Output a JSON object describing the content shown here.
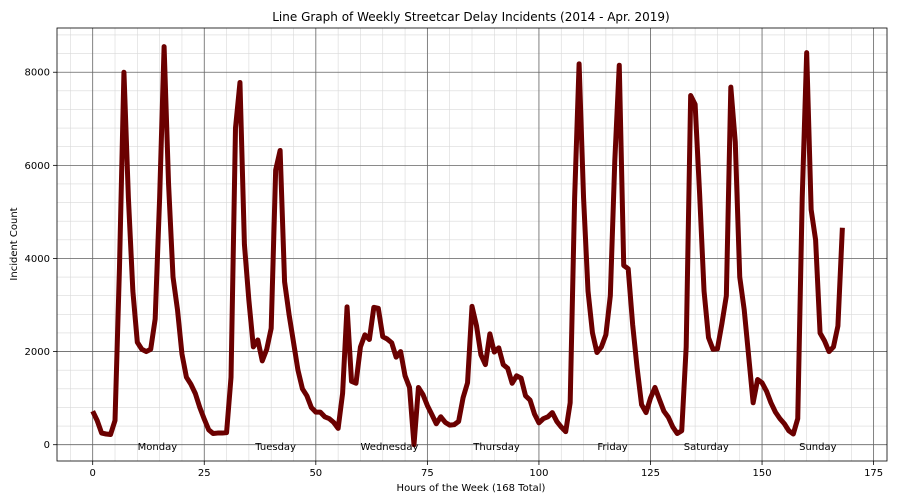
{
  "chart_data": {
    "type": "line",
    "title": "Line Graph of Weekly Streetcar Delay Incidents (2014 - Apr. 2019)",
    "xlabel": "Hours of the Week (168 Total)",
    "ylabel": "Incident Count",
    "xlim": [
      -8,
      178
    ],
    "ylim": [
      -350,
      8950
    ],
    "x_ticks": [
      0,
      25,
      50,
      75,
      100,
      125,
      150,
      175
    ],
    "y_ticks": [
      0,
      2000,
      4000,
      6000,
      8000
    ],
    "x_minor_step": 5,
    "y_minor_step": 400,
    "grid": true,
    "line_color": "#6b0000",
    "day_labels": [
      {
        "label": "Monday",
        "x": 14.5
      },
      {
        "label": "Tuesday",
        "x": 41
      },
      {
        "label": "Wednesday",
        "x": 66.5
      },
      {
        "label": "Thursday",
        "x": 90.5
      },
      {
        "label": "Friday",
        "x": 116.5
      },
      {
        "label": "Saturday",
        "x": 137.5
      },
      {
        "label": "Sunday",
        "x": 162.5
      }
    ],
    "series": [
      {
        "x": [
          0,
          1,
          2,
          3,
          4,
          5,
          6,
          7,
          8,
          9,
          10,
          11,
          12,
          13,
          14,
          15,
          16,
          17,
          18,
          19,
          20,
          21,
          22,
          23,
          24,
          25,
          26,
          27,
          28,
          29,
          30,
          31,
          32,
          33,
          34,
          35,
          36,
          37,
          38,
          39,
          40,
          41,
          42,
          43,
          44,
          45,
          46,
          47,
          48,
          49,
          50,
          51,
          52,
          53,
          54,
          55,
          56,
          57,
          58,
          59,
          60,
          61,
          62,
          63,
          64,
          65,
          66,
          67,
          68,
          69,
          70,
          71,
          72,
          73,
          74,
          75,
          76,
          77,
          78,
          79,
          80,
          81,
          82,
          83,
          84,
          85,
          86,
          87,
          88,
          89,
          90,
          91,
          92,
          93,
          94,
          95,
          96,
          97,
          98,
          99,
          100,
          101,
          102,
          103,
          104,
          105,
          106,
          107,
          108,
          109,
          110,
          111,
          112,
          113,
          114,
          115,
          116,
          117,
          118,
          119,
          120,
          121,
          122,
          123,
          124,
          125,
          126,
          127,
          128,
          129,
          130,
          131,
          132,
          133,
          134,
          135,
          136,
          137,
          138,
          139,
          140,
          141,
          142,
          143,
          144,
          145,
          146,
          147,
          148,
          149,
          150,
          151,
          152,
          153,
          154,
          155,
          156,
          157,
          158,
          159,
          160,
          161,
          162,
          163,
          164,
          165,
          166,
          167,
          168
        ],
        "y": [
          720,
          520,
          250,
          230,
          220,
          520,
          3800,
          8000,
          5300,
          3300,
          2200,
          2050,
          2000,
          2050,
          2700,
          5300,
          8550,
          5600,
          3600,
          2900,
          1950,
          1450,
          1300,
          1100,
          800,
          550,
          320,
          240,
          250,
          250,
          260,
          1450,
          6800,
          7780,
          4300,
          3100,
          2100,
          2250,
          1800,
          2050,
          2500,
          5900,
          6320,
          3500,
          2800,
          2200,
          1600,
          1200,
          1050,
          800,
          700,
          700,
          600,
          560,
          480,
          350,
          1100,
          2960,
          1360,
          1320,
          2100,
          2360,
          2260,
          2950,
          2930,
          2320,
          2270,
          2190,
          1880,
          2000,
          1480,
          1230,
          0,
          1230,
          1080,
          840,
          650,
          450,
          600,
          480,
          420,
          430,
          500,
          1010,
          1330,
          2970,
          2560,
          1930,
          1720,
          2380,
          1990,
          2080,
          1720,
          1640,
          1320,
          1480,
          1430,
          1050,
          960,
          660,
          470,
          560,
          600,
          690,
          500,
          380,
          280,
          900,
          5300,
          8180,
          5300,
          3300,
          2400,
          1980,
          2100,
          2360,
          3200,
          6100,
          8150,
          3850,
          3780,
          2580,
          1650,
          860,
          690,
          1000,
          1230,
          970,
          720,
          590,
          380,
          240,
          300,
          2100,
          7500,
          7310,
          5400,
          3300,
          2300,
          2050,
          2060,
          2600,
          3200,
          7680,
          6500,
          3600,
          2900,
          1900,
          900,
          1400,
          1330,
          1150,
          900,
          700,
          560,
          450,
          300,
          230,
          560,
          5300,
          8420,
          5050,
          4400,
          2400,
          2230,
          2000,
          2100,
          2550,
          4660
        ]
      }
    ]
  }
}
